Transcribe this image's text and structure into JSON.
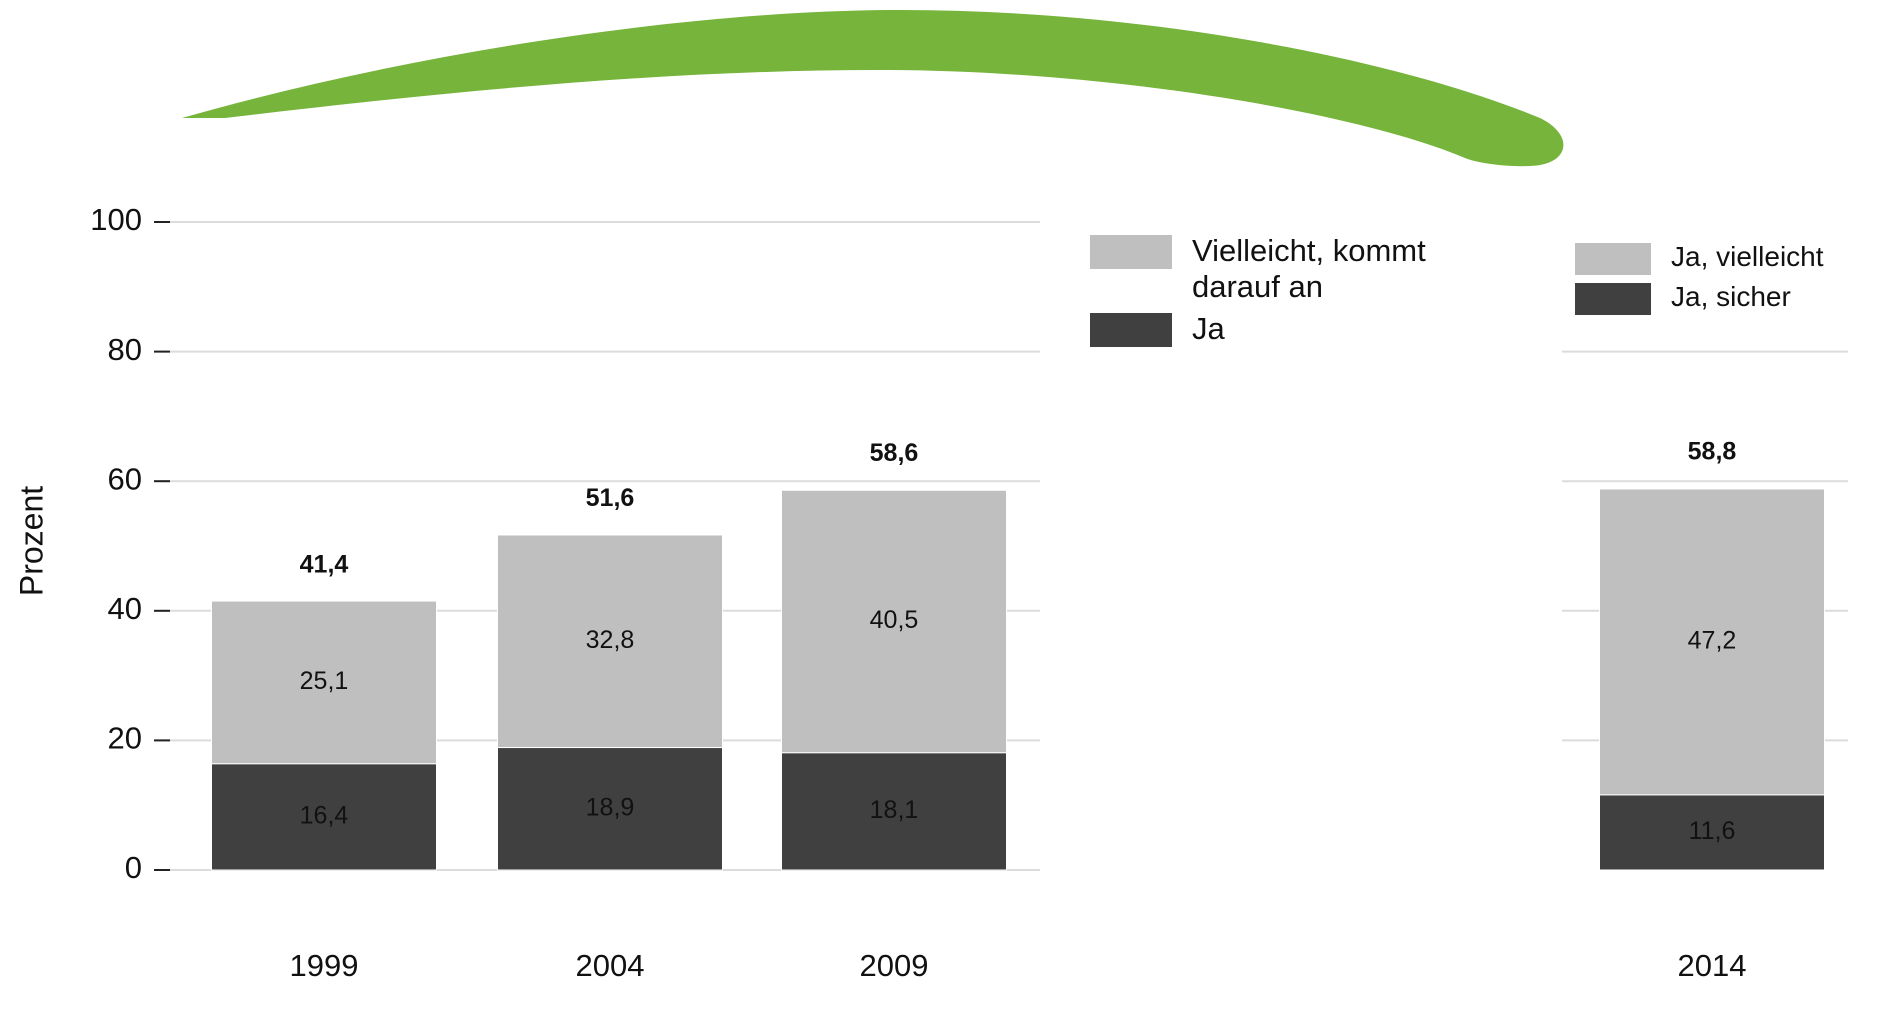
{
  "chart_data": [
    {
      "type": "stacked_bar",
      "y_label": "Prozent",
      "categories": [
        "1999",
        "2004",
        "2009"
      ],
      "series": [
        {
          "name": "Ja",
          "color": "#404040",
          "values": [
            16.4,
            18.9,
            18.1
          ],
          "value_labels": [
            "16,4",
            "18,9",
            "18,1"
          ]
        },
        {
          "name": "Vielleicht, kommt darauf an",
          "color": "#bfbfbf",
          "values": [
            25.1,
            32.8,
            40.5
          ],
          "value_labels": [
            "25,1",
            "32,8",
            "40,5"
          ]
        }
      ],
      "totals": [
        41.4,
        51.6,
        58.6
      ],
      "total_labels": [
        "41,4",
        "51,6",
        "58,6"
      ],
      "ylim": [
        0,
        100
      ],
      "yticks": [
        0,
        20,
        40,
        60,
        80,
        100
      ],
      "grid": true,
      "show_tick_labels": true
    },
    {
      "type": "stacked_bar",
      "categories": [
        "2014"
      ],
      "series": [
        {
          "name": "Ja, sicher",
          "color": "#404040",
          "values": [
            11.6
          ],
          "value_labels": [
            "11,6"
          ]
        },
        {
          "name": "Ja, vielleicht",
          "color": "#bfbfbf",
          "values": [
            47.2
          ],
          "value_labels": [
            "47,2"
          ]
        }
      ],
      "totals": [
        58.8
      ],
      "total_labels": [
        "58,8"
      ],
      "ylim": [
        0,
        100
      ],
      "yticks": [
        20,
        40,
        60,
        80
      ],
      "grid": true,
      "show_tick_labels": false
    }
  ]
}
